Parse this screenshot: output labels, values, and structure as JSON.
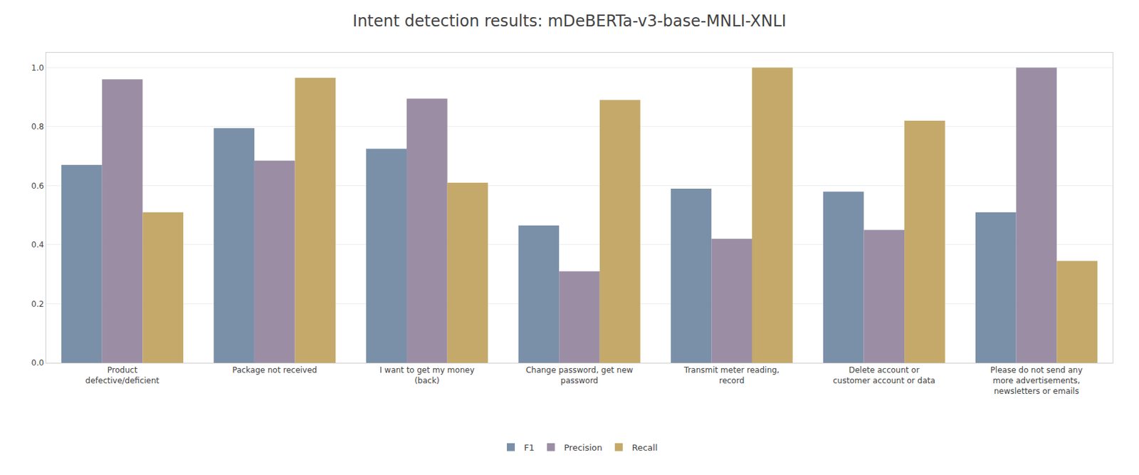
{
  "chart_data": {
    "type": "bar",
    "title": "Intent detection results: mDeBERTa-v3-base-MNLI-XNLI",
    "categories": [
      "Product\ndefective/deficient",
      "Package not received",
      "I want to get my money\n(back)",
      "Change password, get new\npassword",
      "Transmit meter reading,\nrecord",
      "Delete account or\ncustomer account or data",
      "Please do not send any\nmore advertisements,\nnewsletters or emails"
    ],
    "series": [
      {
        "name": "F1",
        "color": "#7a8fa8",
        "values": [
          0.67,
          0.795,
          0.725,
          0.465,
          0.59,
          0.58,
          0.51
        ]
      },
      {
        "name": "Precision",
        "color": "#9b8ea4",
        "values": [
          0.96,
          0.685,
          0.895,
          0.31,
          0.42,
          0.45,
          1.0
        ]
      },
      {
        "name": "Recall",
        "color": "#c4a96a",
        "values": [
          0.51,
          0.965,
          0.61,
          0.89,
          1.0,
          0.82,
          0.345
        ]
      }
    ],
    "ylim": [
      0.0,
      1.05
    ],
    "yticks": [
      {
        "value": 0,
        "label": "0.0"
      },
      0.2,
      0.4,
      0.6,
      0.8,
      {
        "value": 1,
        "label": "1.0"
      }
    ],
    "grid": true,
    "legend": "bottom"
  }
}
